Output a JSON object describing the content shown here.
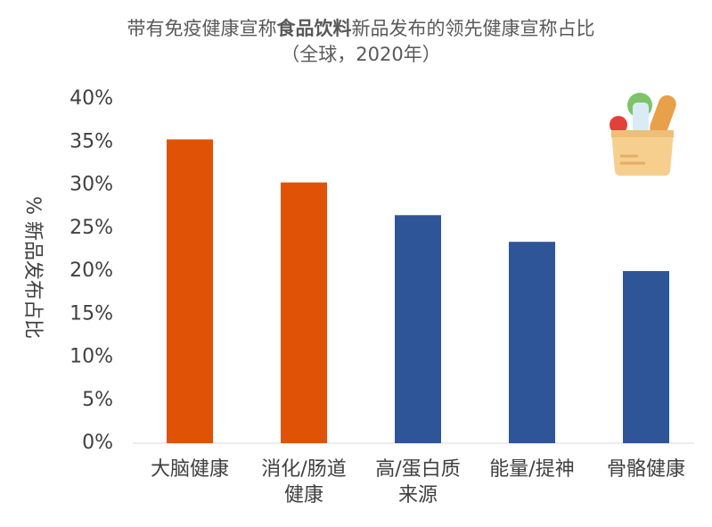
{
  "chart_data": {
    "type": "bar",
    "title": [
      "带有免疫健康宣称",
      "食品饮料",
      "新品发布的领先健康宣称占比"
    ],
    "subtitle": "（全球，2020年）",
    "y_label": "% 新品发布占比",
    "categories": [
      "大脑健康",
      "消化/肠道健康",
      "高/蛋白质来源",
      "能量/提神",
      "骨骼健康"
    ],
    "values": [
      35.3,
      30.3,
      26.5,
      23.4,
      20.0
    ],
    "colors": [
      "#e05206",
      "#e05206",
      "#2e5597",
      "#2e5597",
      "#2e5597"
    ],
    "ylim": [
      0,
      40
    ],
    "yticks": [
      {
        "value": 0,
        "label": "0%"
      },
      {
        "value": 5,
        "label": "5%"
      },
      {
        "value": 10,
        "label": "10%"
      },
      {
        "value": 15,
        "label": "15%"
      },
      {
        "value": 20,
        "label": "20%"
      },
      {
        "value": 25,
        "label": "25%"
      },
      {
        "value": 30,
        "label": "30%"
      },
      {
        "value": 35,
        "label": "35%"
      },
      {
        "value": 40,
        "label": "40%"
      }
    ],
    "grid": false
  }
}
